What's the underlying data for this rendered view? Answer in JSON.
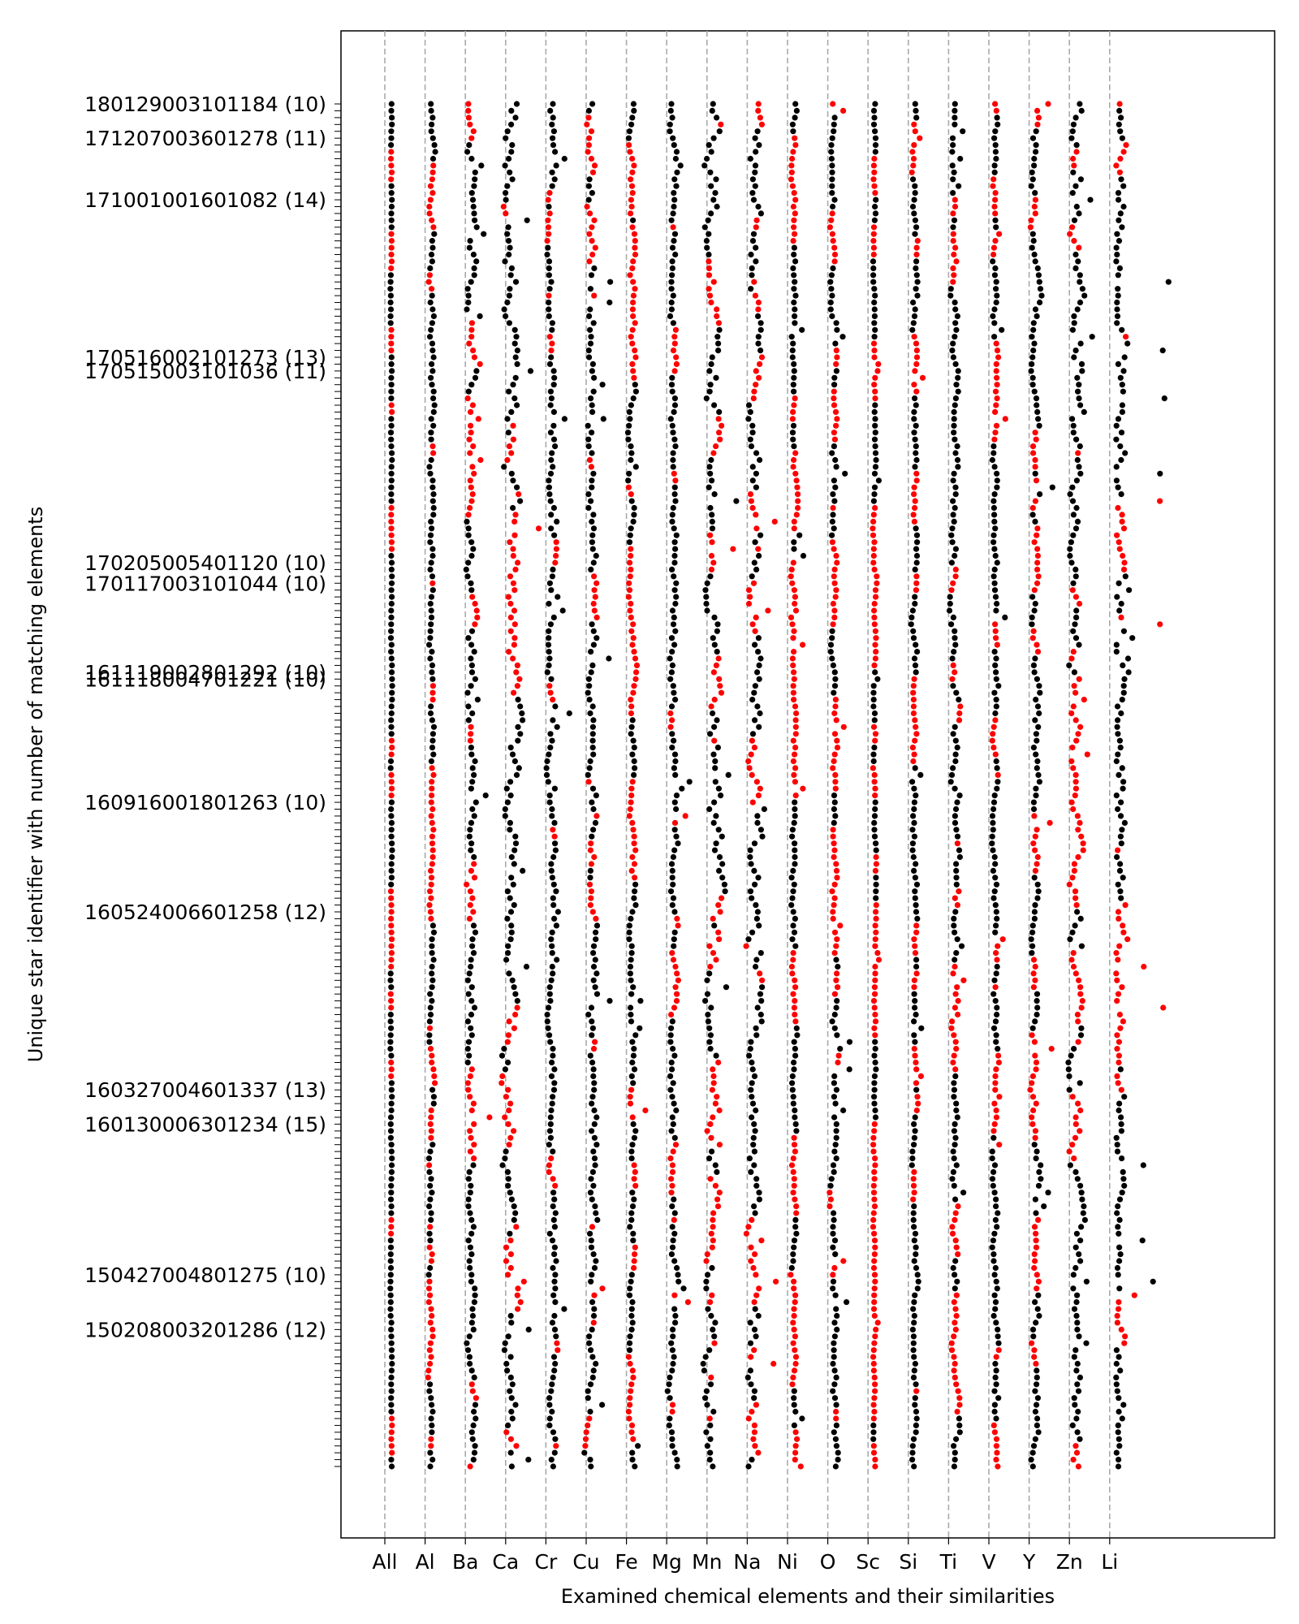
{
  "chart_data": {
    "type": "scatter",
    "xlabel": "Examined chemical elements and their similarities",
    "ylabel": "Unique star identifier with number of matching elements",
    "categories": [
      "All",
      "Al",
      "Ba",
      "Ca",
      "Cr",
      "Cu",
      "Fe",
      "Mg",
      "Mn",
      "Na",
      "Ni",
      "O",
      "Sc",
      "Si",
      "Ti",
      "V",
      "Y",
      "Zn",
      "Li"
    ],
    "n_stars": 200,
    "grid": "vertical dashed lines at each element",
    "ylim_rows": [
      -10,
      210
    ],
    "labeled_stars": [
      {
        "label": "180129003101184 (10)",
        "row": 0
      },
      {
        "label": "171207003601278 (11)",
        "row": 5
      },
      {
        "label": "171001001601082 (14)",
        "row": 14
      },
      {
        "label": "170516002101273 (13)",
        "row": 37
      },
      {
        "label": "170515003101036 (11)",
        "row": 39
      },
      {
        "label": "170205005401120 (10)",
        "row": 67
      },
      {
        "label": "170117003101044 (10)",
        "row": 70
      },
      {
        "label": "161119002801292 (10)",
        "row": 83
      },
      {
        "label": "161118004701221 (10)",
        "row": 84
      },
      {
        "label": "160916001801263 (10)",
        "row": 102
      },
      {
        "label": "160524006601258 (12)",
        "row": 118
      },
      {
        "label": "160327004601337 (13)",
        "row": 144
      },
      {
        "label": "160130006301234 (15)",
        "row": 149
      },
      {
        "label": "150427004801275 (10)",
        "row": 171
      },
      {
        "label": "150208003201286 (12)",
        "row": 179
      }
    ],
    "point_colors": {
      "match": "#ff0000",
      "other": "#000000"
    },
    "column_spread": [
      0.02,
      0.08,
      0.15,
      0.22,
      0.12,
      0.15,
      0.1,
      0.12,
      0.22,
      0.2,
      0.08,
      0.1,
      0.04,
      0.08,
      0.12,
      0.08,
      0.12,
      0.18,
      0.3
    ],
    "column_match_fraction": [
      0.3,
      0.4,
      0.35,
      0.35,
      0.25,
      0.3,
      0.4,
      0.35,
      0.4,
      0.4,
      0.45,
      0.4,
      0.45,
      0.4,
      0.4,
      0.4,
      0.4,
      0.4,
      0.4
    ],
    "note_points": "Each star (row) has one point per element column; red = matching element, black = not matching."
  }
}
